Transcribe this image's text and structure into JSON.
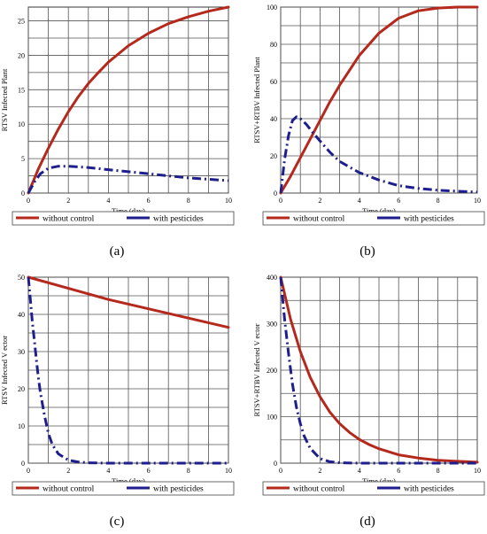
{
  "colors": {
    "without_control": "#b5281c",
    "with_pesticides": "#1e1e8c",
    "grid": "#555555"
  },
  "chart_data": [
    {
      "type": "line",
      "panel_label": "(a)",
      "xlabel": "Time (day)",
      "ylabel": "RTSV Infected Plant",
      "xlim": [
        0,
        10
      ],
      "ylim": [
        0,
        27
      ],
      "xticks": [
        0,
        2,
        4,
        6,
        8,
        10
      ],
      "yticks": [
        0,
        5,
        10,
        15,
        20,
        25
      ],
      "grid": true,
      "legend_position": "bottom",
      "series": [
        {
          "name": "without control",
          "style": "solid",
          "x": [
            0,
            0.5,
            1,
            1.5,
            2,
            2.5,
            3,
            3.5,
            4,
            5,
            6,
            7,
            8,
            9,
            10
          ],
          "y": [
            0,
            3.5,
            6.5,
            9.3,
            11.8,
            14.0,
            15.9,
            17.5,
            19.0,
            21.4,
            23.2,
            24.6,
            25.6,
            26.4,
            27.0
          ]
        },
        {
          "name": "with pesticides",
          "style": "dashdot",
          "x": [
            0,
            0.3,
            0.6,
            1,
            1.5,
            2,
            3,
            4,
            5,
            6,
            7,
            8,
            9,
            10
          ],
          "y": [
            0,
            1.6,
            2.8,
            3.6,
            3.9,
            3.9,
            3.7,
            3.4,
            3.1,
            2.8,
            2.5,
            2.2,
            2.0,
            1.8
          ]
        }
      ]
    },
    {
      "type": "line",
      "panel_label": "(b)",
      "xlabel": "Time (day)",
      "ylabel": "RTSV+RTBV Infected Plant",
      "xlim": [
        0,
        10
      ],
      "ylim": [
        0,
        100
      ],
      "xticks": [
        0,
        2,
        4,
        6,
        8,
        10
      ],
      "yticks": [
        0,
        20,
        40,
        60,
        80,
        100
      ],
      "grid": true,
      "legend_position": "bottom",
      "series": [
        {
          "name": "without control",
          "style": "solid",
          "x": [
            0,
            0.5,
            1,
            1.5,
            2,
            2.5,
            3,
            3.5,
            4,
            4.5,
            5,
            5.5,
            6,
            6.5,
            7,
            8,
            9,
            10
          ],
          "y": [
            0,
            9,
            19,
            29,
            39,
            49,
            58,
            66,
            74,
            80,
            86,
            90,
            94,
            96,
            98,
            99.5,
            100,
            100
          ]
        },
        {
          "name": "with pesticides",
          "style": "dashdot",
          "x": [
            0,
            0.2,
            0.4,
            0.6,
            0.8,
            1,
            1.3,
            1.6,
            2,
            2.5,
            3,
            4,
            5,
            6,
            7,
            8,
            9,
            10
          ],
          "y": [
            0,
            18,
            31,
            39,
            41,
            40,
            37,
            33,
            28,
            22,
            17,
            11,
            7,
            4,
            2.5,
            1.5,
            1,
            0.5
          ]
        }
      ]
    },
    {
      "type": "line",
      "panel_label": "(c)",
      "xlabel": "Time (day)",
      "ylabel": "RTSV Infected V ector",
      "xlim": [
        0,
        10
      ],
      "ylim": [
        0,
        50
      ],
      "xticks": [
        0,
        2,
        4,
        6,
        8,
        10
      ],
      "yticks": [
        0,
        10,
        20,
        30,
        40,
        50
      ],
      "grid": true,
      "legend_position": "bottom",
      "series": [
        {
          "name": "without control",
          "style": "solid",
          "x": [
            0,
            2,
            4,
            6,
            8,
            10
          ],
          "y": [
            50,
            47,
            44,
            41.5,
            39,
            36.5
          ]
        },
        {
          "name": "with pesticides",
          "style": "dashdot",
          "x": [
            0,
            0.1,
            0.2,
            0.3,
            0.4,
            0.5,
            0.6,
            0.8,
            1,
            1.2,
            1.5,
            2,
            2.5,
            3,
            4,
            6,
            8,
            10
          ],
          "y": [
            50,
            44,
            38,
            33,
            28,
            23,
            19,
            13,
            8,
            5,
            2.5,
            0.8,
            0.3,
            0.1,
            0,
            0,
            0,
            0
          ]
        }
      ]
    },
    {
      "type": "line",
      "panel_label": "(d)",
      "xlabel": "Time (day)",
      "ylabel": "RTSV+RTBV Infected V ector",
      "xlim": [
        0,
        10
      ],
      "ylim": [
        0,
        400
      ],
      "xticks": [
        0,
        2,
        4,
        6,
        8,
        10
      ],
      "yticks": [
        0,
        100,
        200,
        300,
        400
      ],
      "grid": true,
      "legend_position": "bottom",
      "series": [
        {
          "name": "without control",
          "style": "solid",
          "x": [
            0,
            0.5,
            1,
            1.5,
            2,
            2.5,
            3,
            3.5,
            4,
            4.5,
            5,
            6,
            7,
            8,
            9,
            10
          ],
          "y": [
            400,
            310,
            240,
            185,
            143,
            110,
            85,
            66,
            51,
            40,
            31,
            18,
            11,
            6,
            4,
            2
          ]
        },
        {
          "name": "with pesticides",
          "style": "dashdot",
          "x": [
            0,
            0.2,
            0.4,
            0.6,
            0.8,
            1,
            1.2,
            1.5,
            2,
            2.5,
            3,
            4,
            6,
            8,
            10
          ],
          "y": [
            400,
            310,
            235,
            170,
            120,
            85,
            58,
            32,
            10,
            3,
            1,
            0,
            0,
            0,
            0
          ]
        }
      ]
    }
  ]
}
